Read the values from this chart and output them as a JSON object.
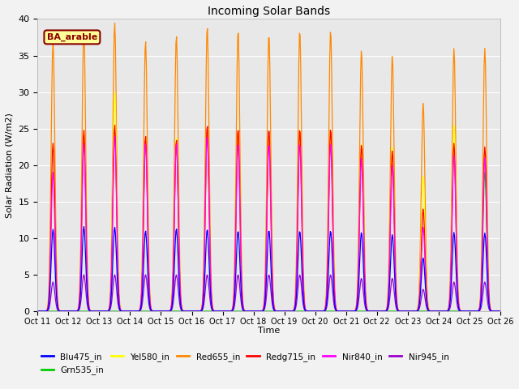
{
  "title": "Incoming Solar Bands",
  "xlabel": "Time",
  "ylabel": "Solar Radiation (W/m2)",
  "ylim": [
    0,
    40
  ],
  "annotation_text": "BA_arable",
  "annotation_bg": "#FFFF99",
  "annotation_border": "#8B0000",
  "annotation_text_color": "#8B0000",
  "plot_bg_color": "#E8E8E8",
  "fig_bg_color": "#F2F2F2",
  "series": {
    "Blu475_in": {
      "color": "#0000FF",
      "lw": 0.9
    },
    "Grn535_in": {
      "color": "#00CC00",
      "lw": 0.9
    },
    "Yel580_in": {
      "color": "#FFFF00",
      "lw": 0.9
    },
    "Red655_in": {
      "color": "#FF8800",
      "lw": 0.9
    },
    "Redg715_in": {
      "color": "#FF0000",
      "lw": 0.9
    },
    "Nir840_in": {
      "color": "#FF00FF",
      "lw": 0.9
    },
    "Nir945_in": {
      "color": "#9900CC",
      "lw": 0.9
    }
  },
  "n_days": 15,
  "samples_per_day": 48,
  "sigma": 0.06,
  "peaks": {
    "Blu475_in": [
      11.2,
      11.6,
      11.5,
      11.0,
      11.3,
      11.2,
      11.0,
      11.1,
      11.0,
      11.0,
      10.8,
      10.5,
      7.3,
      10.8,
      10.7
    ],
    "Grn535_in": [
      0.0,
      0.0,
      0.0,
      0.0,
      0.0,
      0.0,
      0.0,
      0.0,
      0.0,
      0.0,
      0.0,
      0.0,
      0.0,
      0.0,
      19.0
    ],
    "Yel580_in": [
      23.0,
      24.5,
      30.0,
      24.0,
      23.8,
      25.0,
      24.5,
      24.0,
      25.0,
      25.0,
      23.0,
      22.5,
      18.5,
      25.5,
      22.0
    ],
    "Red655_in": [
      37.0,
      38.5,
      39.5,
      37.0,
      37.8,
      39.0,
      38.5,
      38.0,
      38.5,
      38.5,
      35.8,
      35.0,
      28.5,
      36.0,
      36.0
    ],
    "Redg715_in": [
      23.0,
      24.8,
      25.5,
      24.0,
      23.5,
      25.5,
      25.0,
      25.0,
      25.0,
      25.0,
      22.8,
      22.0,
      14.0,
      23.0,
      22.5
    ],
    "Nir840_in": [
      19.0,
      23.0,
      24.0,
      23.0,
      23.0,
      24.0,
      23.0,
      23.0,
      23.0,
      23.0,
      21.0,
      20.0,
      11.5,
      21.5,
      21.0
    ],
    "Nir945_in": [
      4.0,
      5.0,
      5.0,
      5.0,
      5.0,
      5.0,
      5.0,
      5.0,
      5.0,
      5.0,
      4.5,
      4.5,
      3.0,
      4.0,
      4.0
    ]
  },
  "xtick_labels": [
    "Oct 11",
    "Oct 12",
    "Oct 13",
    "Oct 14",
    "Oct 15",
    "Oct 16",
    "Oct 17",
    "Oct 18",
    "Oct 19",
    "Oct 20",
    "Oct 21",
    "Oct 22",
    "Oct 23",
    "Oct 24",
    "Oct 25",
    "Oct 26"
  ],
  "ytick_vals": [
    0,
    5,
    10,
    15,
    20,
    25,
    30,
    35,
    40
  ],
  "grid_color": "#FFFFFF",
  "grid_lw": 0.8,
  "legend_order": [
    "Blu475_in",
    "Grn535_in",
    "Yel580_in",
    "Red655_in",
    "Redg715_in",
    "Nir840_in",
    "Nir945_in"
  ]
}
